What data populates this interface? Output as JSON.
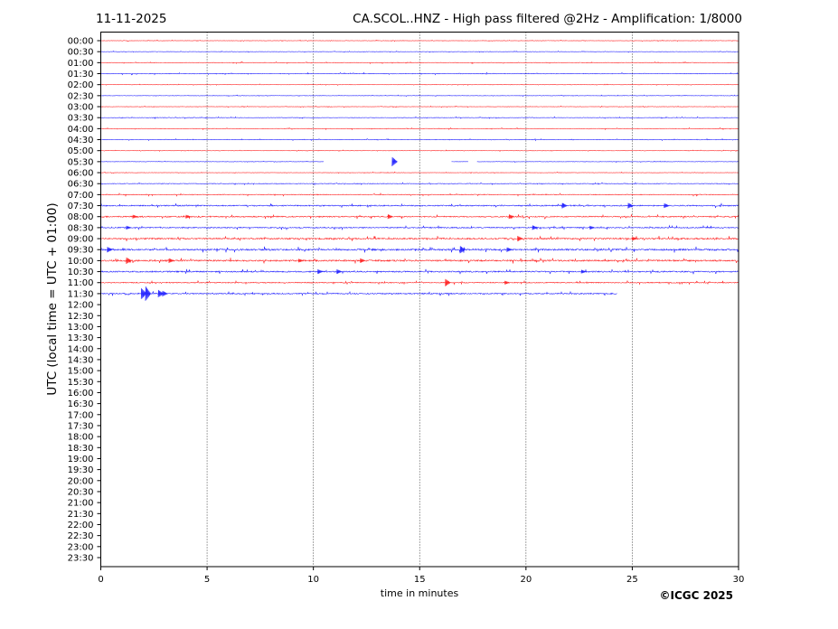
{
  "header": {
    "date": "11-11-2025",
    "title": "CA.SCOL..HNZ - High pass filtered @2Hz - Amplification: 1/8000"
  },
  "footer": {
    "copyright": "©ICGC 2025"
  },
  "chart_data": {
    "type": "line",
    "subtype": "helicorder",
    "xlabel": "time in minutes",
    "ylabel": "UTC (local time = UTC + 01:00)",
    "xlim": [
      0,
      30
    ],
    "xticks": [
      "0",
      "5",
      "10",
      "15",
      "20",
      "25",
      "30"
    ],
    "grid": "vertical dotted lines every 5 minutes",
    "colors": {
      "odd": "#ff0000",
      "even": "#0000ff",
      "grid": "#000000"
    },
    "rows": [
      {
        "label": "00:00",
        "color": "#ff0000",
        "activity": 0.3
      },
      {
        "label": "00:30",
        "color": "#0000ff",
        "activity": 0.3
      },
      {
        "label": "01:00",
        "color": "#ff0000",
        "activity": 0.4
      },
      {
        "label": "01:30",
        "color": "#0000ff",
        "activity": 0.5
      },
      {
        "label": "02:00",
        "color": "#ff0000",
        "activity": 0.3
      },
      {
        "label": "02:30",
        "color": "#0000ff",
        "activity": 0.3
      },
      {
        "label": "03:00",
        "color": "#ff0000",
        "activity": 0.3
      },
      {
        "label": "03:30",
        "color": "#0000ff",
        "activity": 0.4
      },
      {
        "label": "04:00",
        "color": "#ff0000",
        "activity": 0.4
      },
      {
        "label": "04:30",
        "color": "#0000ff",
        "activity": 0.4
      },
      {
        "label": "05:00",
        "color": "#ff0000",
        "activity": 0.3
      },
      {
        "label": "05:30",
        "color": "#0000ff",
        "activity": 0.3,
        "segments": [
          [
            0,
            10.5
          ],
          [
            16.5,
            17.3
          ],
          [
            17.7,
            30
          ]
        ],
        "events": [
          [
            13.7,
            5
          ]
        ]
      },
      {
        "label": "06:00",
        "color": "#ff0000",
        "activity": 0.3
      },
      {
        "label": "06:30",
        "color": "#0000ff",
        "activity": 0.5
      },
      {
        "label": "07:00",
        "color": "#ff0000",
        "activity": 0.6
      },
      {
        "label": "07:30",
        "color": "#0000ff",
        "activity": 1.0,
        "events": [
          [
            21.7,
            3
          ],
          [
            24.8,
            3
          ],
          [
            26.5,
            2.5
          ]
        ]
      },
      {
        "label": "08:00",
        "color": "#ff0000",
        "activity": 1.0,
        "events": [
          [
            1.5,
            2
          ],
          [
            4,
            2
          ],
          [
            13.5,
            2.5
          ],
          [
            19.2,
            2.5
          ]
        ]
      },
      {
        "label": "08:30",
        "color": "#0000ff",
        "activity": 0.9,
        "events": [
          [
            1.2,
            2
          ],
          [
            20.3,
            2.5
          ],
          [
            23,
            2
          ]
        ]
      },
      {
        "label": "09:00",
        "color": "#ff0000",
        "activity": 1.2,
        "events": [
          [
            19.6,
            3
          ],
          [
            25,
            2
          ]
        ]
      },
      {
        "label": "09:30",
        "color": "#0000ff",
        "activity": 1.4,
        "events": [
          [
            0.3,
            3
          ],
          [
            16.9,
            4
          ],
          [
            19.1,
            2.5
          ]
        ]
      },
      {
        "label": "10:00",
        "color": "#ff0000",
        "activity": 1.3,
        "events": [
          [
            1.2,
            3.5
          ],
          [
            3.2,
            2.5
          ],
          [
            9.3,
            2
          ],
          [
            12.2,
            2.5
          ]
        ]
      },
      {
        "label": "10:30",
        "color": "#0000ff",
        "activity": 1.1,
        "events": [
          [
            10.2,
            2.5
          ],
          [
            11.1,
            2.5
          ],
          [
            22.6,
            2
          ]
        ]
      },
      {
        "label": "11:00",
        "color": "#ff0000",
        "activity": 0.8,
        "events": [
          [
            16.2,
            4
          ],
          [
            19,
            2
          ]
        ]
      },
      {
        "label": "11:30",
        "color": "#0000ff",
        "activity": 1.0,
        "segments": [
          [
            0,
            24.3
          ]
        ],
        "events": [
          [
            1.9,
            6
          ],
          [
            2.1,
            8
          ],
          [
            2.7,
            4
          ],
          [
            2.9,
            3
          ]
        ]
      },
      {
        "label": "12:00"
      },
      {
        "label": "12:30"
      },
      {
        "label": "13:00"
      },
      {
        "label": "13:30"
      },
      {
        "label": "14:00"
      },
      {
        "label": "14:30"
      },
      {
        "label": "15:00"
      },
      {
        "label": "15:30"
      },
      {
        "label": "16:00"
      },
      {
        "label": "16:30"
      },
      {
        "label": "17:00"
      },
      {
        "label": "17:30"
      },
      {
        "label": "18:00"
      },
      {
        "label": "18:30"
      },
      {
        "label": "19:00"
      },
      {
        "label": "19:30"
      },
      {
        "label": "20:00"
      },
      {
        "label": "20:30"
      },
      {
        "label": "21:00"
      },
      {
        "label": "21:30"
      },
      {
        "label": "22:00"
      },
      {
        "label": "22:30"
      },
      {
        "label": "23:00"
      },
      {
        "label": "23:30"
      }
    ]
  }
}
